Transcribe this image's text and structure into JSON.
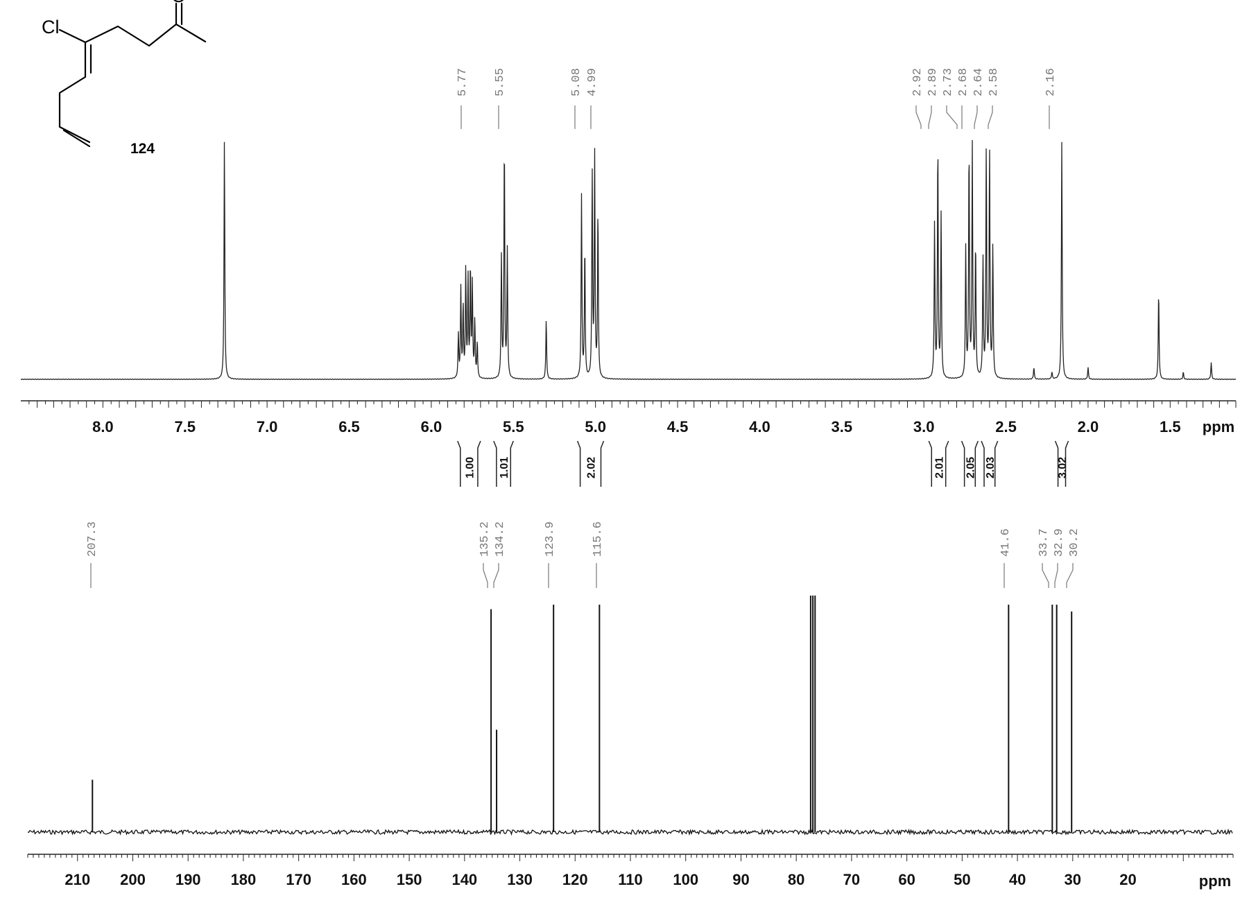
{
  "structure": {
    "compound_number": "124",
    "atom_labels": {
      "chlorine": "Cl",
      "oxygen": "O"
    }
  },
  "chart_data": [
    {
      "type": "line",
      "nucleus": "1H",
      "xlim": [
        8.5,
        1.1
      ],
      "ylim": [
        0,
        1
      ],
      "xlabel": "ppm",
      "ticks": [
        8.0,
        7.5,
        7.0,
        6.5,
        6.0,
        5.5,
        5.0,
        4.5,
        4.0,
        3.5,
        3.0,
        2.5,
        2.0,
        1.5
      ],
      "tick_labels": [
        "8.0",
        "7.5",
        "7.0",
        "6.5",
        "6.0",
        "5.5",
        "5.0",
        "4.5",
        "4.0",
        "3.5",
        "3.0",
        "2.5",
        "2.0",
        "1.5"
      ],
      "axis_unit_label": "ppm",
      "peak_labels": [
        "5.77",
        "5.55",
        "5.08",
        "4.99",
        "2.92",
        "2.89",
        "2.73",
        "2.68",
        "2.64",
        "2.58",
        "2.16"
      ],
      "integrals": [
        {
          "from": 5.84,
          "to": 5.7,
          "value": "1.00"
        },
        {
          "from": 5.62,
          "to": 5.5,
          "value": "1.01"
        },
        {
          "from": 5.11,
          "to": 4.95,
          "value": "2.02"
        },
        {
          "from": 2.97,
          "to": 2.85,
          "value": "2.01"
        },
        {
          "from": 2.77,
          "to": 2.67,
          "value": "2.05"
        },
        {
          "from": 2.65,
          "to": 2.55,
          "value": "2.03"
        },
        {
          "from": 2.2,
          "to": 2.12,
          "value": "3.02"
        }
      ],
      "peaks": [
        {
          "x": 7.26,
          "y": 1.0
        },
        {
          "x": 5.835,
          "y": 0.18
        },
        {
          "x": 5.82,
          "y": 0.37
        },
        {
          "x": 5.806,
          "y": 0.3
        },
        {
          "x": 5.79,
          "y": 0.45
        },
        {
          "x": 5.776,
          "y": 0.41
        },
        {
          "x": 5.762,
          "y": 0.46
        },
        {
          "x": 5.75,
          "y": 0.39
        },
        {
          "x": 5.735,
          "y": 0.24
        },
        {
          "x": 5.72,
          "y": 0.15
        },
        {
          "x": 5.573,
          "y": 0.5
        },
        {
          "x": 5.555,
          "y": 0.99
        },
        {
          "x": 5.537,
          "y": 0.53
        },
        {
          "x": 5.3,
          "y": 0.25
        },
        {
          "x": 5.085,
          "y": 0.76
        },
        {
          "x": 5.065,
          "y": 0.55
        },
        {
          "x": 5.02,
          "y": 0.85
        },
        {
          "x": 5.005,
          "y": 0.92
        },
        {
          "x": 4.985,
          "y": 0.7
        },
        {
          "x": 2.935,
          "y": 0.64
        },
        {
          "x": 2.915,
          "y": 0.98
        },
        {
          "x": 2.895,
          "y": 0.68
        },
        {
          "x": 2.745,
          "y": 0.54
        },
        {
          "x": 2.725,
          "y": 0.96
        },
        {
          "x": 2.705,
          "y": 0.96
        },
        {
          "x": 2.685,
          "y": 0.56
        },
        {
          "x": 2.64,
          "y": 0.5
        },
        {
          "x": 2.62,
          "y": 0.96
        },
        {
          "x": 2.6,
          "y": 0.96
        },
        {
          "x": 2.58,
          "y": 0.55
        },
        {
          "x": 2.33,
          "y": 0.05
        },
        {
          "x": 2.22,
          "y": 0.03
        },
        {
          "x": 2.16,
          "y": 0.99
        },
        {
          "x": 2.0,
          "y": 0.05
        },
        {
          "x": 1.57,
          "y": 0.37
        },
        {
          "x": 1.42,
          "y": 0.03
        },
        {
          "x": 1.25,
          "y": 0.07
        }
      ]
    },
    {
      "type": "line",
      "nucleus": "13C",
      "xlim": [
        219,
        1
      ],
      "ylim": [
        0,
        1
      ],
      "xlabel": "ppm",
      "ticks": [
        210,
        200,
        190,
        180,
        170,
        160,
        150,
        140,
        130,
        120,
        110,
        100,
        90,
        80,
        70,
        60,
        50,
        40,
        30,
        20
      ],
      "tick_labels": [
        "210",
        "200",
        "190",
        "180",
        "170",
        "160",
        "150",
        "140",
        "130",
        "120",
        "110",
        "100",
        "90",
        "80",
        "70",
        "60",
        "50",
        "40",
        "30",
        "20"
      ],
      "axis_unit_label": "ppm",
      "peak_labels": [
        "207.3",
        "135.2",
        "134.2",
        "123.9",
        "115.6",
        "41.6",
        "33.7",
        "32.9",
        "30.2"
      ],
      "peaks": [
        {
          "x": 207.3,
          "y": 0.23
        },
        {
          "x": 135.2,
          "y": 0.98
        },
        {
          "x": 134.2,
          "y": 0.45
        },
        {
          "x": 123.9,
          "y": 1.0
        },
        {
          "x": 115.6,
          "y": 1.0
        },
        {
          "x": 77.4,
          "y": 1.04
        },
        {
          "x": 77.0,
          "y": 1.04
        },
        {
          "x": 76.6,
          "y": 1.04
        },
        {
          "x": 41.6,
          "y": 1.0
        },
        {
          "x": 33.7,
          "y": 1.0
        },
        {
          "x": 32.9,
          "y": 1.0
        },
        {
          "x": 30.2,
          "y": 0.97
        }
      ]
    }
  ]
}
